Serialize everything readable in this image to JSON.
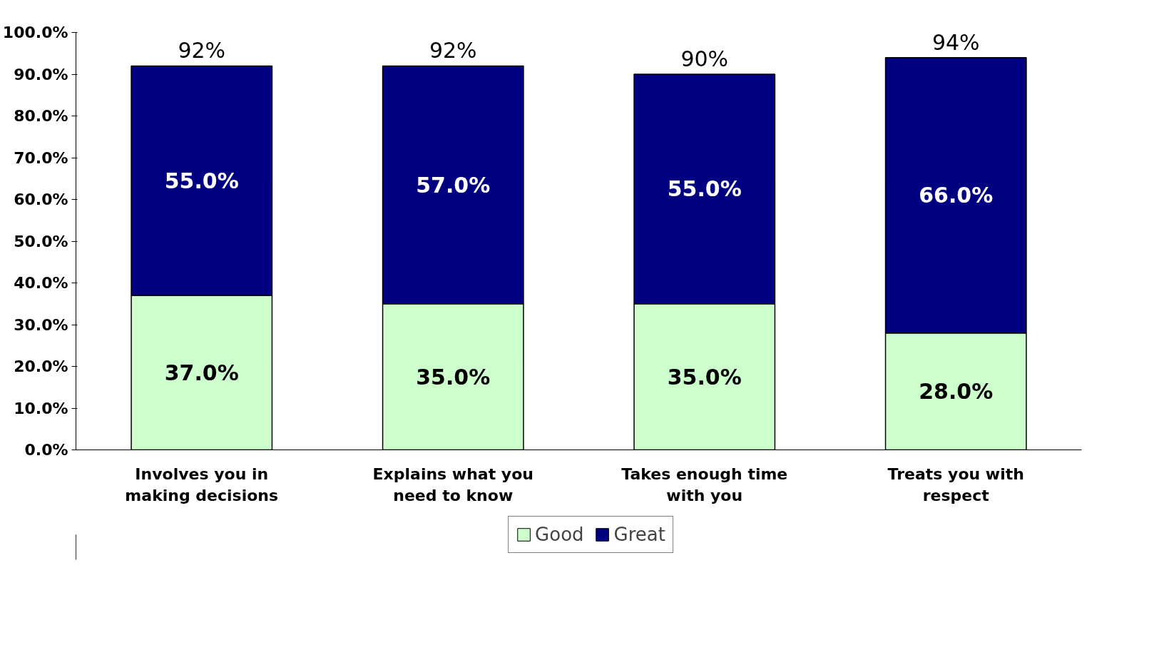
{
  "chart_data": {
    "type": "bar",
    "stacked": true,
    "categories": [
      "Involves you in making decisions",
      "Explains what you need to know",
      "Takes enough time with you",
      "Treats you with respect"
    ],
    "series": [
      {
        "name": "Good",
        "color": "#ccffcc",
        "values": [
          37,
          35,
          35,
          28
        ],
        "value_labels": [
          "37.0%",
          "35.0%",
          "35.0%",
          "28.0%"
        ]
      },
      {
        "name": "Great",
        "color": "#000080",
        "values": [
          55,
          57,
          55,
          66
        ],
        "value_labels": [
          "55.0%",
          "57.0%",
          "55.0%",
          "66.0%"
        ]
      }
    ],
    "totals": [
      "92%",
      "92%",
      "90%",
      "94%"
    ],
    "ylim": [
      0,
      100
    ],
    "yticks": [
      {
        "value": 0,
        "label": "0.0%"
      },
      {
        "value": 10,
        "label": "10.0%"
      },
      {
        "value": 20,
        "label": "20.0%"
      },
      {
        "value": 30,
        "label": "30.0%"
      },
      {
        "value": 40,
        "label": "40.0%"
      },
      {
        "value": 50,
        "label": "50.0%"
      },
      {
        "value": 60,
        "label": "60.0%"
      },
      {
        "value": 70,
        "label": "70.0%"
      },
      {
        "value": 80,
        "label": "80.0%"
      },
      {
        "value": 90,
        "label": "90.0%"
      },
      {
        "value": 100,
        "label": "100.0%"
      }
    ],
    "grid": false,
    "legend": "bottom"
  }
}
